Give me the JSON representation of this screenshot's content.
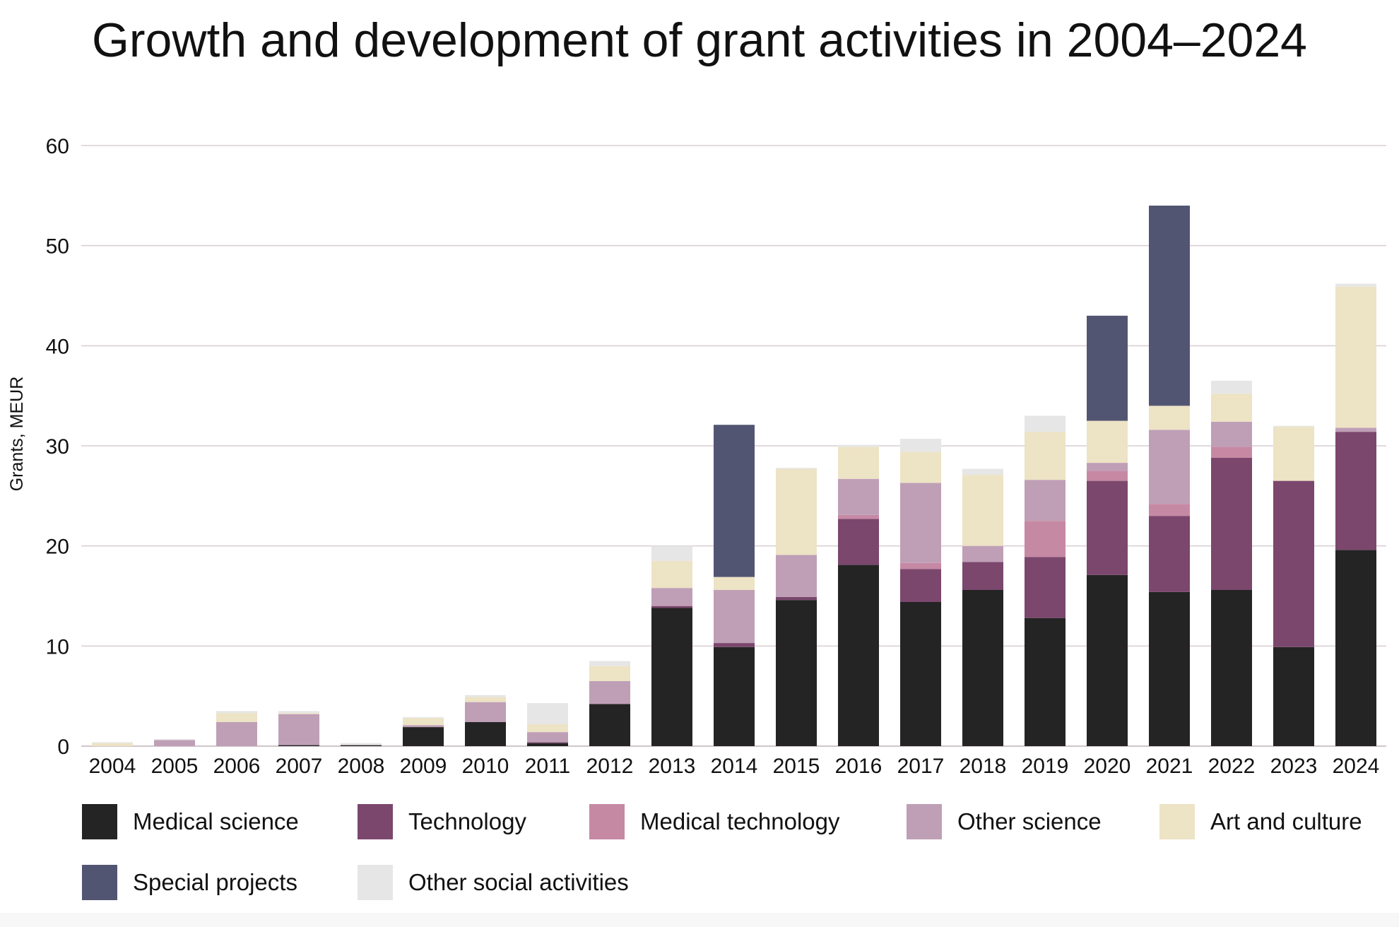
{
  "chart_data": {
    "type": "bar",
    "stacked": true,
    "title": "Growth and development of grant activities in 2004–2024",
    "xlabel": "",
    "ylabel": "Grants, MEUR",
    "ylim": [
      0,
      60
    ],
    "yticks": [
      0,
      10,
      20,
      30,
      40,
      50,
      60
    ],
    "grid": true,
    "legend_position": "bottom",
    "categories": [
      "2004",
      "2005",
      "2006",
      "2007",
      "2008",
      "2009",
      "2010",
      "2011",
      "2012",
      "2013",
      "2014",
      "2015",
      "2016",
      "2017",
      "2018",
      "2019",
      "2020",
      "2021",
      "2022",
      "2023",
      "2024"
    ],
    "series": [
      {
        "name": "Medical science",
        "color": "#242424",
        "values": [
          0,
          0,
          0,
          0.1,
          0.1,
          1.9,
          2.4,
          0.3,
          4.2,
          13.8,
          9.9,
          14.6,
          18.1,
          14.4,
          15.6,
          12.8,
          17.1,
          15.4,
          15.6,
          9.9,
          19.6
        ]
      },
      {
        "name": "Technology",
        "color": "#7b476d",
        "values": [
          0,
          0,
          0,
          0,
          0,
          0,
          0,
          0.1,
          0,
          0.2,
          0.4,
          0.3,
          4.6,
          3.3,
          2.8,
          6.1,
          9.4,
          7.6,
          13.2,
          16.6,
          11.8
        ]
      },
      {
        "name": "Medical technology",
        "color": "#c689a4",
        "values": [
          0,
          0,
          0,
          0,
          0,
          0,
          0,
          0,
          0,
          0,
          0,
          0,
          0.4,
          0.6,
          0,
          3.6,
          1.0,
          1.2,
          1.1,
          0,
          0
        ]
      },
      {
        "name": "Other science",
        "color": "#bf9fb6",
        "values": [
          0,
          0.6,
          2.4,
          3.1,
          0,
          0.2,
          2.0,
          1.0,
          2.3,
          1.8,
          5.3,
          4.2,
          3.6,
          8.0,
          1.6,
          4.1,
          0.8,
          7.4,
          2.5,
          0,
          0.4
        ]
      },
      {
        "name": "Art and culture",
        "color": "#ede3c5",
        "values": [
          0.3,
          0,
          0.9,
          0.1,
          0,
          0.7,
          0.5,
          0.8,
          1.5,
          2.7,
          1.3,
          8.6,
          3.2,
          3.1,
          7.1,
          4.8,
          4.2,
          2.4,
          2.8,
          5.4,
          14.1
        ]
      },
      {
        "name": "Special projects",
        "color": "#525572",
        "values": [
          0,
          0,
          0,
          0,
          0,
          0,
          0,
          0,
          0,
          0,
          15.2,
          0,
          0,
          0,
          0,
          0,
          10.5,
          20.0,
          0,
          0,
          0
        ]
      },
      {
        "name": "Other social activities",
        "color": "#e6e6e6",
        "values": [
          0.1,
          0.1,
          0.2,
          0.2,
          0.2,
          0.1,
          0.2,
          2.1,
          0.5,
          1.5,
          0,
          0.1,
          0.2,
          1.3,
          0.6,
          1.6,
          0,
          0,
          1.3,
          0.1,
          0.3
        ]
      }
    ]
  }
}
